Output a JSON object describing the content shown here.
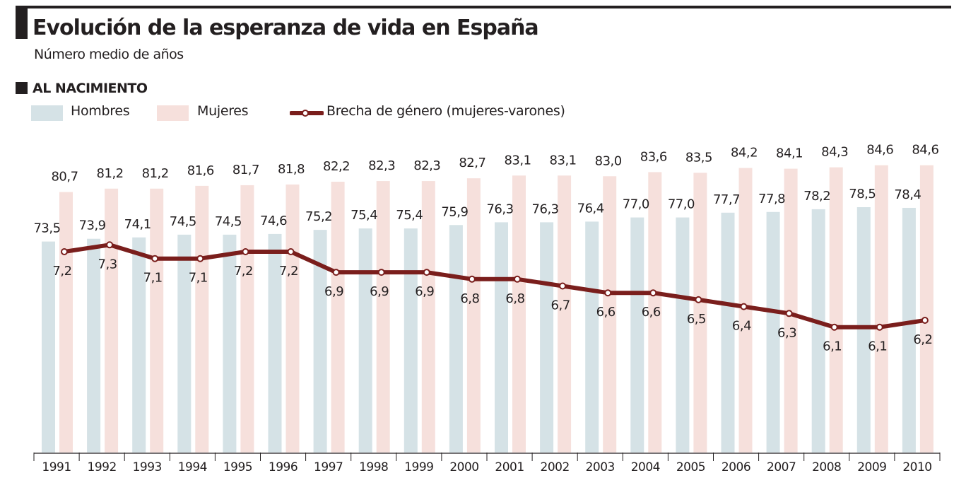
{
  "header": {
    "title": "Evolución de la esperanza de vida en España",
    "subtitle": "Número medio de años",
    "section": "AL NACIMIENTO"
  },
  "legend": {
    "items": [
      {
        "name": "Hombres",
        "color": "#d5e2e6"
      },
      {
        "name": "Mujeres",
        "color": "#f6e0dc"
      },
      {
        "name": "Brecha de género (mujeres-varones)",
        "color": "#7a1e1c"
      }
    ]
  },
  "chart_data": {
    "type": "bar",
    "title": "Evolución de la esperanza de vida en España",
    "subtitle": "Número medio de años",
    "xlabel": "",
    "ylabel": "",
    "grid": false,
    "legend_position": "top-left",
    "categories": [
      "1991",
      "1992",
      "1993",
      "1994",
      "1995",
      "1996",
      "1997",
      "1998",
      "1999",
      "2000",
      "2001",
      "2002",
      "2003",
      "2004",
      "2005",
      "2006",
      "2007",
      "2008",
      "2009",
      "2010"
    ],
    "series": [
      {
        "name": "Hombres",
        "type": "bar",
        "color": "#d5e2e6",
        "values": [
          73.5,
          73.9,
          74.1,
          74.5,
          74.5,
          74.6,
          75.2,
          75.4,
          75.4,
          75.9,
          76.3,
          76.3,
          76.4,
          77.0,
          77.0,
          77.7,
          77.8,
          78.2,
          78.5,
          78.4
        ],
        "labels": [
          "73,5",
          "73,9",
          "74,1",
          "74,5",
          "74,5",
          "74,6",
          "75,2",
          "75,4",
          "75,4",
          "75,9",
          "76,3",
          "76,3",
          "76,4",
          "77,0",
          "77,0",
          "77,7",
          "77,8",
          "78,2",
          "78,5",
          "78,4"
        ]
      },
      {
        "name": "Mujeres",
        "type": "bar",
        "color": "#f6e0dc",
        "values": [
          80.7,
          81.2,
          81.2,
          81.6,
          81.7,
          81.8,
          82.2,
          82.3,
          82.3,
          82.7,
          83.1,
          83.1,
          83.0,
          83.6,
          83.5,
          84.2,
          84.1,
          84.3,
          84.6,
          84.6
        ],
        "labels": [
          "80,7",
          "81,2",
          "81,2",
          "81,6",
          "81,7",
          "81,8",
          "82,2",
          "82,3",
          "82,3",
          "82,7",
          "83,1",
          "83,1",
          "83,0",
          "83,6",
          "83,5",
          "84,2",
          "84,1",
          "84,3",
          "84,6",
          "84,6"
        ]
      },
      {
        "name": "Brecha de género (mujeres-varones)",
        "type": "line",
        "color": "#7a1e1c",
        "values": [
          7.2,
          7.3,
          7.1,
          7.1,
          7.2,
          7.2,
          6.9,
          6.9,
          6.9,
          6.8,
          6.8,
          6.7,
          6.6,
          6.6,
          6.5,
          6.4,
          6.3,
          6.1,
          6.1,
          6.2
        ],
        "labels": [
          "7,2",
          "7,3",
          "7,1",
          "7,1",
          "7,2",
          "7,2",
          "6,9",
          "6,9",
          "6,9",
          "6,8",
          "6,8",
          "6,7",
          "6,6",
          "6,6",
          "6,5",
          "6,4",
          "6,3",
          "6,1",
          "6,1",
          "6,2"
        ]
      }
    ]
  }
}
